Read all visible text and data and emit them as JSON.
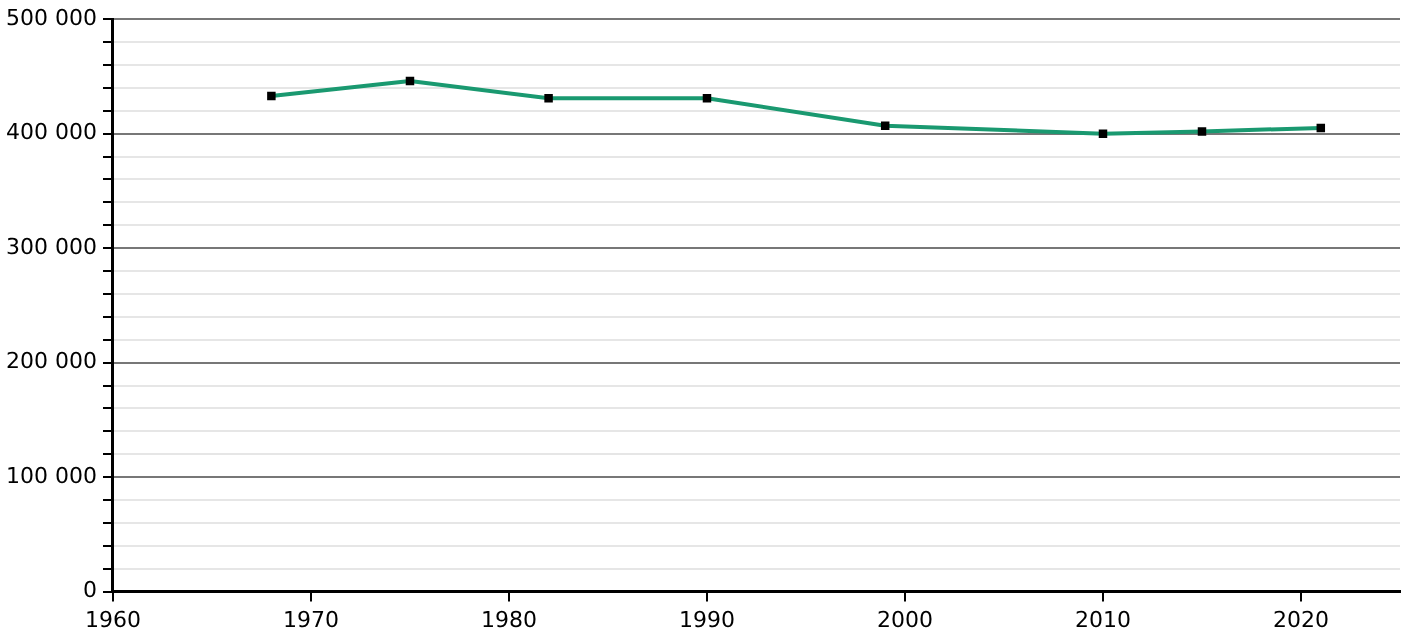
{
  "chart_data": {
    "type": "line",
    "x": [
      1968,
      1975,
      1982,
      1990,
      1999,
      2010,
      2015,
      2021
    ],
    "series": [
      {
        "color": "#1a9970",
        "values": [
          433000,
          446000,
          431000,
          431000,
          407000,
          400000,
          402000,
          405000
        ]
      }
    ],
    "xlim": [
      1960,
      2025
    ],
    "xticks": [
      1960,
      1970,
      1980,
      1990,
      2000,
      2010,
      2020
    ],
    "ylim": [
      0,
      500000
    ],
    "yticks": [
      {
        "value": 0,
        "label": "0"
      },
      {
        "value": 20000,
        "label": null
      },
      {
        "value": 40000,
        "label": null
      },
      {
        "value": 60000,
        "label": null
      },
      {
        "value": 80000,
        "label": null
      },
      {
        "value": 100000,
        "label": "100 000"
      },
      {
        "value": 120000,
        "label": null
      },
      {
        "value": 140000,
        "label": null
      },
      {
        "value": 160000,
        "label": null
      },
      {
        "value": 180000,
        "label": null
      },
      {
        "value": 200000,
        "label": "200 000"
      },
      {
        "value": 220000,
        "label": null
      },
      {
        "value": 240000,
        "label": null
      },
      {
        "value": 260000,
        "label": null
      },
      {
        "value": 280000,
        "label": null
      },
      {
        "value": 300000,
        "label": "300 000"
      },
      {
        "value": 320000,
        "label": null
      },
      {
        "value": 340000,
        "label": null
      },
      {
        "value": 360000,
        "label": null
      },
      {
        "value": 380000,
        "label": null
      },
      {
        "value": 400000,
        "label": "400 000"
      },
      {
        "value": 420000,
        "label": null
      },
      {
        "value": 440000,
        "label": null
      },
      {
        "value": 460000,
        "label": null
      },
      {
        "value": 480000,
        "label": null
      },
      {
        "value": 500000,
        "label": "500 000"
      }
    ],
    "grid": "y",
    "marker": "square",
    "line_style": "solid",
    "legend": false
  }
}
